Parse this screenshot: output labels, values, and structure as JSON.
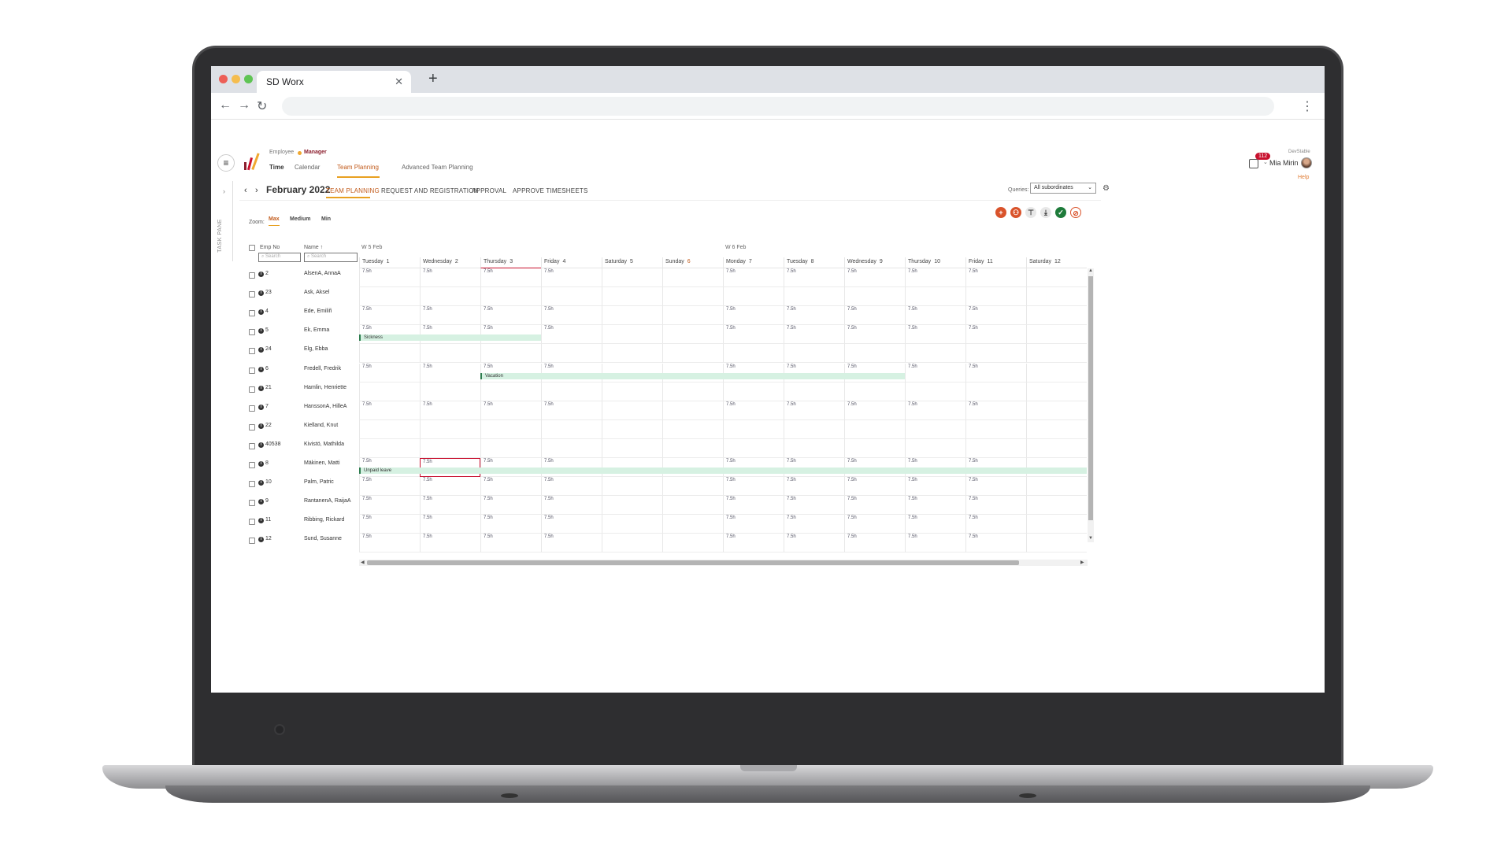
{
  "browser": {
    "tab_title": "SD Worx",
    "tab_close": "✕",
    "new_tab": "+",
    "back": "←",
    "forward": "→",
    "reload": "↻",
    "menu": "⋮"
  },
  "header": {
    "role_employee": "Employee",
    "role_manager": "Manager",
    "nav": [
      {
        "label": "Time"
      },
      {
        "label": "Calendar"
      },
      {
        "label": "Team Planning"
      },
      {
        "label": "Advanced Team Planning"
      }
    ],
    "notifications_count": "112",
    "environment": "DevStable",
    "user_name": "Mia Mirin",
    "help": "Help"
  },
  "task_pane": {
    "label": "TASK PANE",
    "chevron": "›"
  },
  "subheader": {
    "prev": "‹",
    "next": "›",
    "month": "February 2022",
    "tabs": [
      "TEAM PLANNING",
      "REQUEST AND REGISTRATION",
      "APPROVAL",
      "APPROVE TIMESHEETS"
    ],
    "queries_label": "Queries:",
    "queries_value": "All subordinates"
  },
  "zoom": {
    "label": "Zoom:",
    "options": [
      "Max",
      "Medium",
      "Min"
    ]
  },
  "actions": [
    {
      "icon": "add-icon",
      "symbol": "+",
      "color": "#d9532b"
    },
    {
      "icon": "add-group-icon",
      "symbol": "⚇",
      "color": "#d9532b"
    },
    {
      "icon": "filter-icon",
      "symbol": "⊤",
      "color": "#e8e8e8"
    },
    {
      "icon": "export-icon",
      "symbol": "⤓",
      "color": "#e8e8e8"
    },
    {
      "icon": "approve-icon",
      "symbol": "✓",
      "color": "#1e7b3a"
    },
    {
      "icon": "reject-icon",
      "symbol": "⊘",
      "color": "#ffffff"
    }
  ],
  "grid": {
    "col_empno": "Emp No",
    "col_name": "Name ↑",
    "search_placeholder": "Search",
    "weeks": [
      "W 5 Feb",
      "W 6 Feb"
    ],
    "days": [
      {
        "name": "Tuesday",
        "num": "1"
      },
      {
        "name": "Wednesday",
        "num": "2"
      },
      {
        "name": "Thursday",
        "num": "3"
      },
      {
        "name": "Friday",
        "num": "4"
      },
      {
        "name": "Saturday",
        "num": "5"
      },
      {
        "name": "Sunday",
        "num": "6"
      },
      {
        "name": "Monday",
        "num": "7"
      },
      {
        "name": "Tuesday",
        "num": "8"
      },
      {
        "name": "Wednesday",
        "num": "9"
      },
      {
        "name": "Thursday",
        "num": "10"
      },
      {
        "name": "Friday",
        "num": "11"
      },
      {
        "name": "Saturday",
        "num": "12"
      }
    ],
    "rows": [
      {
        "empno": "2",
        "name": "AlsenA, AnnaA",
        "hours": [
          "7.5h",
          "7.5h",
          "7.5h",
          "7.5h",
          "",
          "",
          "7.5h",
          "7.5h",
          "7.5h",
          "7.5h",
          "7.5h",
          ""
        ]
      },
      {
        "empno": "23",
        "name": "Ask, Aksel",
        "hours": [
          "",
          "",
          "",
          "",
          "",
          "",
          "",
          "",
          "",
          "",
          "",
          ""
        ]
      },
      {
        "empno": "4",
        "name": "Ede, Emiliñ",
        "hours": [
          "7.5h",
          "7.5h",
          "7.5h",
          "7.5h",
          "",
          "",
          "7.5h",
          "7.5h",
          "7.5h",
          "7.5h",
          "7.5h",
          ""
        ]
      },
      {
        "empno": "5",
        "name": "Ek, Emma",
        "hours": [
          "7.5h",
          "7.5h",
          "7.5h",
          "7.5h",
          "",
          "",
          "7.5h",
          "7.5h",
          "7.5h",
          "7.5h",
          "7.5h",
          ""
        ],
        "absence": {
          "label": "Sickness",
          "start": 0,
          "end": 3
        }
      },
      {
        "empno": "24",
        "name": "Elg, Ebba",
        "hours": [
          "",
          "",
          "",
          "",
          "",
          "",
          "",
          "",
          "",
          "",
          "",
          ""
        ]
      },
      {
        "empno": "6",
        "name": "Fredell, Fredrik",
        "hours": [
          "7.5h",
          "7.5h",
          "7.5h",
          "7.5h",
          "",
          "",
          "7.5h",
          "7.5h",
          "7.5h",
          "7.5h",
          "7.5h",
          ""
        ],
        "absence": {
          "label": "Vacation",
          "start": 2,
          "end": 9
        }
      },
      {
        "empno": "21",
        "name": "Hamlin, Henriette",
        "hours": [
          "",
          "",
          "",
          "",
          "",
          "",
          "",
          "",
          "",
          "",
          "",
          ""
        ]
      },
      {
        "empno": "7",
        "name": "HanssonA, HilleA",
        "hours": [
          "7.5h",
          "7.5h",
          "7.5h",
          "7.5h",
          "",
          "",
          "7.5h",
          "7.5h",
          "7.5h",
          "7.5h",
          "7.5h",
          ""
        ]
      },
      {
        "empno": "22",
        "name": "Kielland, Knut",
        "hours": [
          "",
          "",
          "",
          "",
          "",
          "",
          "",
          "",
          "",
          "",
          "",
          ""
        ]
      },
      {
        "empno": "40538",
        "name": "Kivistö, Mathilda",
        "hours": [
          "",
          "",
          "",
          "",
          "",
          "",
          "",
          "",
          "",
          "",
          "",
          ""
        ]
      },
      {
        "empno": "8",
        "name": "Mäkinen, Matti",
        "hours": [
          "7.5h",
          "7.5h",
          "7.5h",
          "7.5h",
          "",
          "",
          "7.5h",
          "7.5h",
          "7.5h",
          "7.5h",
          "7.5h",
          ""
        ],
        "absence": {
          "label": "Unpaid leave",
          "start": 0,
          "end": 12
        },
        "selected_col": 1
      },
      {
        "empno": "10",
        "name": "Palm, Patric",
        "hours": [
          "7.5h",
          "7.5h",
          "7.5h",
          "7.5h",
          "",
          "",
          "7.5h",
          "7.5h",
          "7.5h",
          "7.5h",
          "7.5h",
          ""
        ]
      },
      {
        "empno": "9",
        "name": "RantanenA, RaijaA",
        "hours": [
          "7.5h",
          "7.5h",
          "7.5h",
          "7.5h",
          "",
          "",
          "7.5h",
          "7.5h",
          "7.5h",
          "7.5h",
          "7.5h",
          ""
        ]
      },
      {
        "empno": "11",
        "name": "Ribbing, Rickard",
        "hours": [
          "7.5h",
          "7.5h",
          "7.5h",
          "7.5h",
          "",
          "",
          "7.5h",
          "7.5h",
          "7.5h",
          "7.5h",
          "7.5h",
          ""
        ]
      },
      {
        "empno": "12",
        "name": "Sund, Susanne",
        "hours": [
          "7.5h",
          "7.5h",
          "7.5h",
          "7.5h",
          "",
          "",
          "7.5h",
          "7.5h",
          "7.5h",
          "7.5h",
          "7.5h",
          ""
        ]
      }
    ]
  },
  "colors": {
    "accent": "#e8a020",
    "brand_red": "#c8102e",
    "absence_fill": "#d6f1e2",
    "absence_bar": "#2e7d4f"
  }
}
